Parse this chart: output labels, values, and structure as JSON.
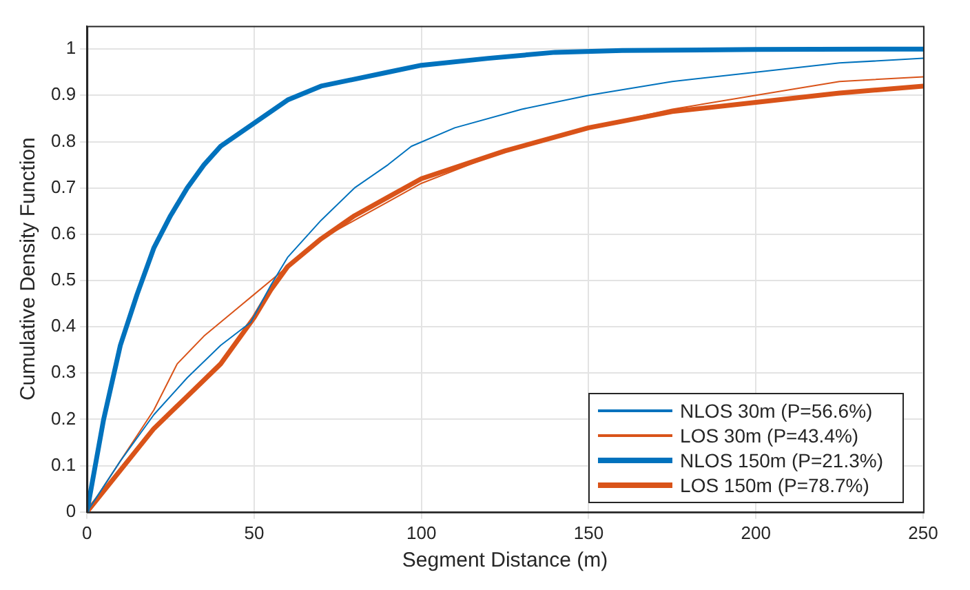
{
  "chart_data": {
    "type": "line",
    "xlabel": "Segment Distance (m)",
    "ylabel": "Cumulative Density Function",
    "xlim": [
      0,
      250
    ],
    "xticks": [
      0,
      50,
      100,
      150,
      200,
      250
    ],
    "ylim": [
      0,
      1.05
    ],
    "yticks": [
      0,
      0.1,
      0.2,
      0.3,
      0.4,
      0.5,
      0.6,
      0.7,
      0.8,
      0.9,
      1
    ],
    "grid": true,
    "legend": "bottom right",
    "marker": "none",
    "line_style": "solid",
    "series": [
      {
        "name": "NLOS 30m (P=56.6%)",
        "color": "#0072bd",
        "x": [
          0,
          10,
          20,
          30,
          40,
          49,
          55,
          60,
          70,
          80,
          90,
          97,
          110,
          130,
          150,
          175,
          200,
          225,
          250
        ],
        "values": [
          0,
          0.11,
          0.21,
          0.29,
          0.36,
          0.41,
          0.49,
          0.55,
          0.63,
          0.7,
          0.75,
          0.79,
          0.83,
          0.87,
          0.9,
          0.93,
          0.95,
          0.97,
          0.98
        ]
      },
      {
        "name": "LOS 30m (P=43.4%)",
        "color": "#d95319",
        "x": [
          0,
          10,
          20,
          27,
          35,
          45,
          50,
          55,
          60,
          70,
          80,
          90,
          100,
          125,
          150,
          175,
          200,
          225,
          250
        ],
        "values": [
          0,
          0.11,
          0.22,
          0.32,
          0.38,
          0.44,
          0.47,
          0.5,
          0.53,
          0.59,
          0.63,
          0.67,
          0.71,
          0.78,
          0.83,
          0.87,
          0.9,
          0.93,
          0.94
        ]
      },
      {
        "name": "NLOS 150m (P=21.3%)",
        "color": "#0072bd",
        "x": [
          0,
          5,
          10,
          15,
          20,
          25,
          30,
          35,
          40,
          50,
          60,
          70,
          80,
          90,
          100,
          120,
          140,
          160,
          200,
          250
        ],
        "values": [
          0,
          0.2,
          0.36,
          0.47,
          0.57,
          0.64,
          0.7,
          0.75,
          0.79,
          0.84,
          0.89,
          0.92,
          0.935,
          0.95,
          0.965,
          0.98,
          0.993,
          0.997,
          0.999,
          1
        ]
      },
      {
        "name": "LOS 150m (P=78.7%)",
        "color": "#d95319",
        "x": [
          0,
          10,
          20,
          30,
          40,
          50,
          55,
          60,
          70,
          80,
          90,
          100,
          125,
          150,
          175,
          200,
          225,
          250
        ],
        "values": [
          0,
          0.09,
          0.18,
          0.25,
          0.32,
          0.42,
          0.48,
          0.53,
          0.59,
          0.64,
          0.68,
          0.72,
          0.78,
          0.83,
          0.865,
          0.885,
          0.905,
          0.92
        ]
      }
    ]
  }
}
